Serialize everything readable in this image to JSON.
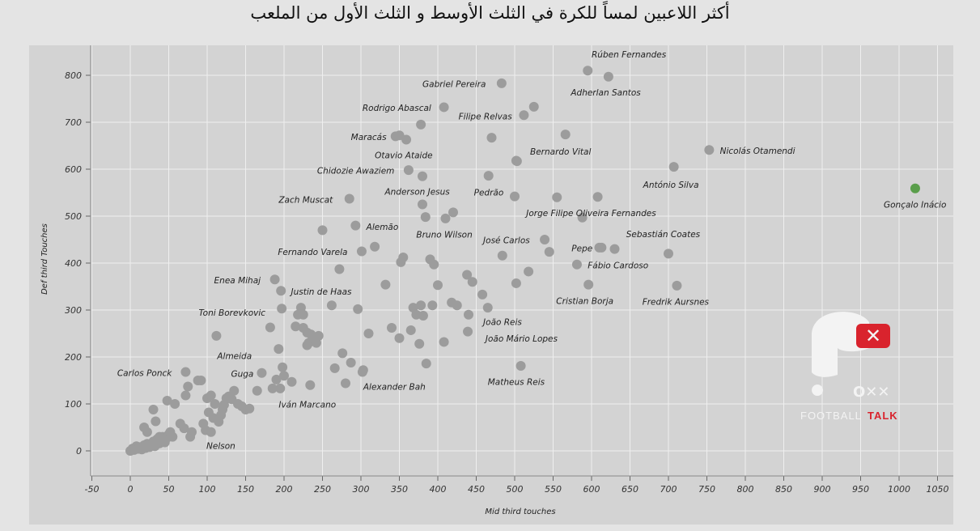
{
  "title": "أكثر اللاعبين لمساً للكرة في الثلث الأوسط و الثلث الأول من الملعب",
  "logo": {
    "word1": "FOOTBALL",
    "word2": "TALK",
    "accent": "#d9232d"
  },
  "colors": {
    "background": "#e4e4e4",
    "plot_bg": "#d3d3d3",
    "point": "#9c9c9c",
    "highlight": "#5a9e4b",
    "grid": "#efefef"
  },
  "chart_data": {
    "type": "scatter",
    "title": "",
    "xlabel": "Mid third touches",
    "ylabel": "Def third Touches",
    "xlim": [
      -70,
      1085
    ],
    "ylim": [
      -55,
      860
    ],
    "xticks": [
      -50,
      0,
      50,
      100,
      150,
      200,
      250,
      300,
      350,
      400,
      450,
      500,
      550,
      600,
      650,
      700,
      750,
      800,
      850,
      900,
      950,
      1000,
      1050
    ],
    "yticks": [
      0,
      100,
      200,
      300,
      400,
      500,
      600,
      700,
      800
    ],
    "grid": true,
    "labeled_points": [
      {
        "name": "Rúben Fernandes",
        "x": 595,
        "y": 810,
        "lx": 600,
        "ly": 845
      },
      {
        "name": "Adherlan Santos",
        "x": 622,
        "y": 797,
        "lx": 573,
        "ly": 764
      },
      {
        "name": "Gabriel Pereira",
        "x": 483,
        "y": 783,
        "lx": 380,
        "ly": 782
      },
      {
        "name": "Rodrigo Abascal",
        "x": 408,
        "y": 732,
        "lx": 302,
        "ly": 731
      },
      {
        "name": "Filipe Relvas",
        "x": 512,
        "y": 715,
        "lx": 427,
        "ly": 713
      },
      {
        "name": "Maracás",
        "x": 345,
        "y": 670,
        "lx": 287,
        "ly": 669
      },
      {
        "name": "Otavio Ataide",
        "x": 359,
        "y": 663,
        "lx": 318,
        "ly": 630
      },
      {
        "name": "Bernardo Vital",
        "x": 503,
        "y": 617,
        "lx": 520,
        "ly": 638
      },
      {
        "name": "Nicolás Otamendi",
        "x": 753,
        "y": 641,
        "lx": 767,
        "ly": 640
      },
      {
        "name": "Chidozie Awaziem",
        "x": 362,
        "y": 598,
        "lx": 243,
        "ly": 597
      },
      {
        "name": "António Silva",
        "x": 707,
        "y": 605,
        "lx": 667,
        "ly": 567
      },
      {
        "name": "Anderson Jesus",
        "x": 380,
        "y": 525,
        "lx": 331,
        "ly": 553
      },
      {
        "name": "Pedrão",
        "x": 466,
        "y": 586,
        "lx": 447,
        "ly": 551
      },
      {
        "name": "Zach Muscat",
        "x": 285,
        "y": 537,
        "lx": 193,
        "ly": 535
      },
      {
        "name": "Jorge Filipe Oliveira Fernandes",
        "x": 608,
        "y": 541,
        "lx": 515,
        "ly": 507
      },
      {
        "name": "Gonçalo Inácio",
        "x": 1021,
        "y": 559,
        "lx": 980,
        "ly": 525
      },
      {
        "name": "Alemão",
        "x": 293,
        "y": 480,
        "lx": 307,
        "ly": 478
      },
      {
        "name": "Bruno Wilson",
        "x": 410,
        "y": 495,
        "lx": 372,
        "ly": 461
      },
      {
        "name": "José Carlos",
        "x": 539,
        "y": 450,
        "lx": 459,
        "ly": 449
      },
      {
        "name": "Sebastián Coates",
        "x": 630,
        "y": 430,
        "lx": 645,
        "ly": 462
      },
      {
        "name": "Pepe",
        "x": 613,
        "y": 433,
        "lx": 574,
        "ly": 432
      },
      {
        "name": "Fernando Varela",
        "x": 301,
        "y": 425,
        "lx": 192,
        "ly": 424
      },
      {
        "name": "Fábio Cardoso",
        "x": 581,
        "y": 397,
        "lx": 595,
        "ly": 396
      },
      {
        "name": "Enea Mihaj",
        "x": 188,
        "y": 365,
        "lx": 109,
        "ly": 364
      },
      {
        "name": "Justin de Haas",
        "x": 196,
        "y": 341,
        "lx": 209,
        "ly": 340
      },
      {
        "name": "Cristian Borja",
        "x": 596,
        "y": 354,
        "lx": 554,
        "ly": 320
      },
      {
        "name": "Fredrik Aursnes",
        "x": 711,
        "y": 352,
        "lx": 666,
        "ly": 318
      },
      {
        "name": "Toni Borevkovic",
        "x": 197,
        "y": 303,
        "lx": 89,
        "ly": 295
      },
      {
        "name": "João Reis",
        "x": 440,
        "y": 290,
        "lx": 459,
        "ly": 275
      },
      {
        "name": "João Mário Lopes",
        "x": 439,
        "y": 254,
        "lx": 462,
        "ly": 240
      },
      {
        "name": "Almeida",
        "x": 112,
        "y": 245,
        "lx": 113,
        "ly": 203
      },
      {
        "name": "Carlos Ponck",
        "x": 72,
        "y": 168,
        "lx": -17,
        "ly": 166
      },
      {
        "name": "Guga",
        "x": 171,
        "y": 166,
        "lx": 131,
        "ly": 165
      },
      {
        "name": "Alexander Bah",
        "x": 303,
        "y": 172,
        "lx": 303,
        "ly": 137
      },
      {
        "name": "Matheus Reis",
        "x": 508,
        "y": 181,
        "lx": 465,
        "ly": 147
      },
      {
        "name": "Iván Marcano",
        "x": 234,
        "y": 140,
        "lx": 193,
        "ly": 99
      },
      {
        "name": "Nelson",
        "x": 105,
        "y": 40,
        "lx": 99,
        "ly": 11
      }
    ],
    "other_points": [
      [
        0,
        0
      ],
      [
        3,
        5
      ],
      [
        5,
        2
      ],
      [
        8,
        10
      ],
      [
        10,
        4
      ],
      [
        12,
        8
      ],
      [
        15,
        3
      ],
      [
        18,
        12
      ],
      [
        20,
        6
      ],
      [
        22,
        15
      ],
      [
        25,
        8
      ],
      [
        28,
        14
      ],
      [
        30,
        20
      ],
      [
        32,
        10
      ],
      [
        35,
        25
      ],
      [
        38,
        16
      ],
      [
        40,
        22
      ],
      [
        42,
        30
      ],
      [
        45,
        18
      ],
      [
        48,
        28
      ],
      [
        50,
        35
      ],
      [
        52,
        40
      ],
      [
        55,
        30
      ],
      [
        18,
        50
      ],
      [
        22,
        40
      ],
      [
        30,
        88
      ],
      [
        33,
        63
      ],
      [
        38,
        30
      ],
      [
        48,
        107
      ],
      [
        58,
        100
      ],
      [
        65,
        58
      ],
      [
        70,
        48
      ],
      [
        72,
        118
      ],
      [
        75,
        137
      ],
      [
        78,
        30
      ],
      [
        80,
        40
      ],
      [
        88,
        150
      ],
      [
        92,
        150
      ],
      [
        95,
        58
      ],
      [
        98,
        44
      ],
      [
        100,
        112
      ],
      [
        102,
        82
      ],
      [
        105,
        118
      ],
      [
        108,
        70
      ],
      [
        110,
        100
      ],
      [
        115,
        62
      ],
      [
        118,
        76
      ],
      [
        120,
        88
      ],
      [
        122,
        98
      ],
      [
        125,
        112
      ],
      [
        128,
        116
      ],
      [
        132,
        110
      ],
      [
        135,
        128
      ],
      [
        140,
        100
      ],
      [
        145,
        95
      ],
      [
        150,
        88
      ],
      [
        155,
        90
      ],
      [
        165,
        128
      ],
      [
        182,
        263
      ],
      [
        190,
        152
      ],
      [
        193,
        217
      ],
      [
        195,
        133
      ],
      [
        198,
        178
      ],
      [
        210,
        147
      ],
      [
        215,
        265
      ],
      [
        218,
        290
      ],
      [
        222,
        305
      ],
      [
        225,
        262
      ],
      [
        230,
        252
      ],
      [
        232,
        230
      ],
      [
        235,
        248
      ],
      [
        240,
        238
      ],
      [
        245,
        245
      ],
      [
        250,
        470
      ],
      [
        262,
        310
      ],
      [
        266,
        176
      ],
      [
        272,
        387
      ],
      [
        276,
        208
      ],
      [
        280,
        144
      ],
      [
        287,
        188
      ],
      [
        296,
        302
      ],
      [
        302,
        168
      ],
      [
        310,
        250
      ],
      [
        318,
        435
      ],
      [
        332,
        354
      ],
      [
        340,
        262
      ],
      [
        350,
        240
      ],
      [
        352,
        402
      ],
      [
        355,
        412
      ],
      [
        365,
        257
      ],
      [
        368,
        305
      ],
      [
        372,
        290
      ],
      [
        376,
        228
      ],
      [
        378,
        310
      ],
      [
        381,
        288
      ],
      [
        385,
        186
      ],
      [
        390,
        408
      ],
      [
        393,
        310
      ],
      [
        395,
        397
      ],
      [
        400,
        353
      ],
      [
        408,
        232
      ],
      [
        418,
        316
      ],
      [
        425,
        310
      ],
      [
        438,
        375
      ],
      [
        445,
        360
      ],
      [
        458,
        333
      ],
      [
        465,
        305
      ],
      [
        484,
        416
      ],
      [
        502,
        357
      ],
      [
        518,
        382
      ],
      [
        545,
        424
      ],
      [
        350,
        672
      ],
      [
        378,
        695
      ],
      [
        380,
        585
      ],
      [
        384,
        498
      ],
      [
        420,
        508
      ],
      [
        470,
        667
      ],
      [
        500,
        542
      ],
      [
        502,
        618
      ],
      [
        525,
        733
      ],
      [
        555,
        540
      ],
      [
        566,
        674
      ],
      [
        588,
        497
      ],
      [
        610,
        433
      ],
      [
        700,
        420
      ],
      [
        242,
        230
      ],
      [
        230,
        225
      ],
      [
        225,
        290
      ],
      [
        200,
        160
      ],
      [
        185,
        133
      ]
    ]
  }
}
